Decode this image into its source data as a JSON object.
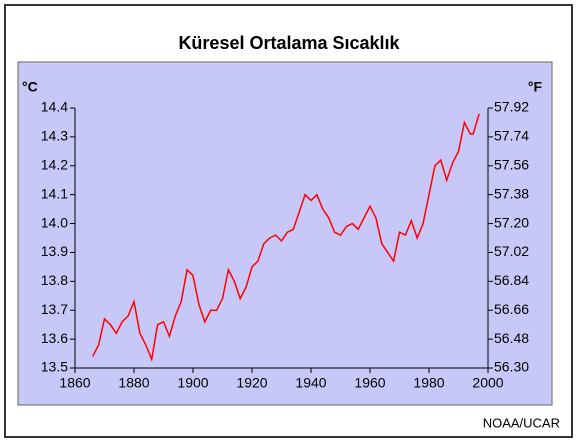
{
  "chart_data": {
    "type": "line",
    "title": "Küresel Ortalama Sıcaklık",
    "y_unit": "°C",
    "y2_unit": "°F",
    "source": "NOAA/UCAR",
    "xlim": [
      1860,
      2000
    ],
    "xticks": [
      1860,
      1880,
      1900,
      1920,
      1940,
      1960,
      1980,
      2000
    ],
    "ylim": [
      13.5,
      14.4
    ],
    "yticks": [
      13.5,
      13.6,
      13.7,
      13.8,
      13.9,
      {
        "value": 14,
        "label": "14.0"
      },
      14.1,
      14.2,
      14.3,
      14.4
    ],
    "y2lim": [
      56.3,
      57.92
    ],
    "y2ticks": [
      {
        "value": 56.3,
        "label": "56.30"
      },
      56.48,
      56.66,
      56.84,
      57.02,
      {
        "value": 57.2,
        "label": "57.20"
      },
      57.38,
      57.56,
      57.74,
      57.92
    ],
    "x": [
      1866,
      1868,
      1870,
      1872,
      1874,
      1876,
      1878,
      1880,
      1882,
      1884,
      1886,
      1888,
      1890,
      1892,
      1894,
      1896,
      1898,
      1900,
      1902,
      1904,
      1906,
      1908,
      1910,
      1912,
      1914,
      1916,
      1918,
      1920,
      1922,
      1924,
      1926,
      1928,
      1930,
      1932,
      1934,
      1936,
      1938,
      1940,
      1942,
      1944,
      1946,
      1948,
      1950,
      1952,
      1954,
      1956,
      1958,
      1960,
      1962,
      1964,
      1966,
      1968,
      1970,
      1972,
      1974,
      1976,
      1978,
      1980,
      1982,
      1984,
      1986,
      1988,
      1990,
      1992,
      1994,
      1995,
      1997
    ],
    "series": [
      {
        "color": "#ff0000",
        "values": [
          13.54,
          13.58,
          13.67,
          13.65,
          13.62,
          13.66,
          13.68,
          13.73,
          13.62,
          13.58,
          13.53,
          13.65,
          13.66,
          13.61,
          13.68,
          13.73,
          13.84,
          13.82,
          13.72,
          13.66,
          13.7,
          13.7,
          13.74,
          13.84,
          13.8,
          13.74,
          13.78,
          13.85,
          13.87,
          13.93,
          13.95,
          13.96,
          13.94,
          13.97,
          13.98,
          14.04,
          14.1,
          14.08,
          14.1,
          14.05,
          14.02,
          13.97,
          13.96,
          13.99,
          14.0,
          13.98,
          14.02,
          14.06,
          14.02,
          13.93,
          13.9,
          13.87,
          13.97,
          13.96,
          14.01,
          13.95,
          14.0,
          14.1,
          14.2,
          14.22,
          14.15,
          14.21,
          14.25,
          14.35,
          14.31,
          14.31,
          14.38
        ]
      }
    ]
  }
}
